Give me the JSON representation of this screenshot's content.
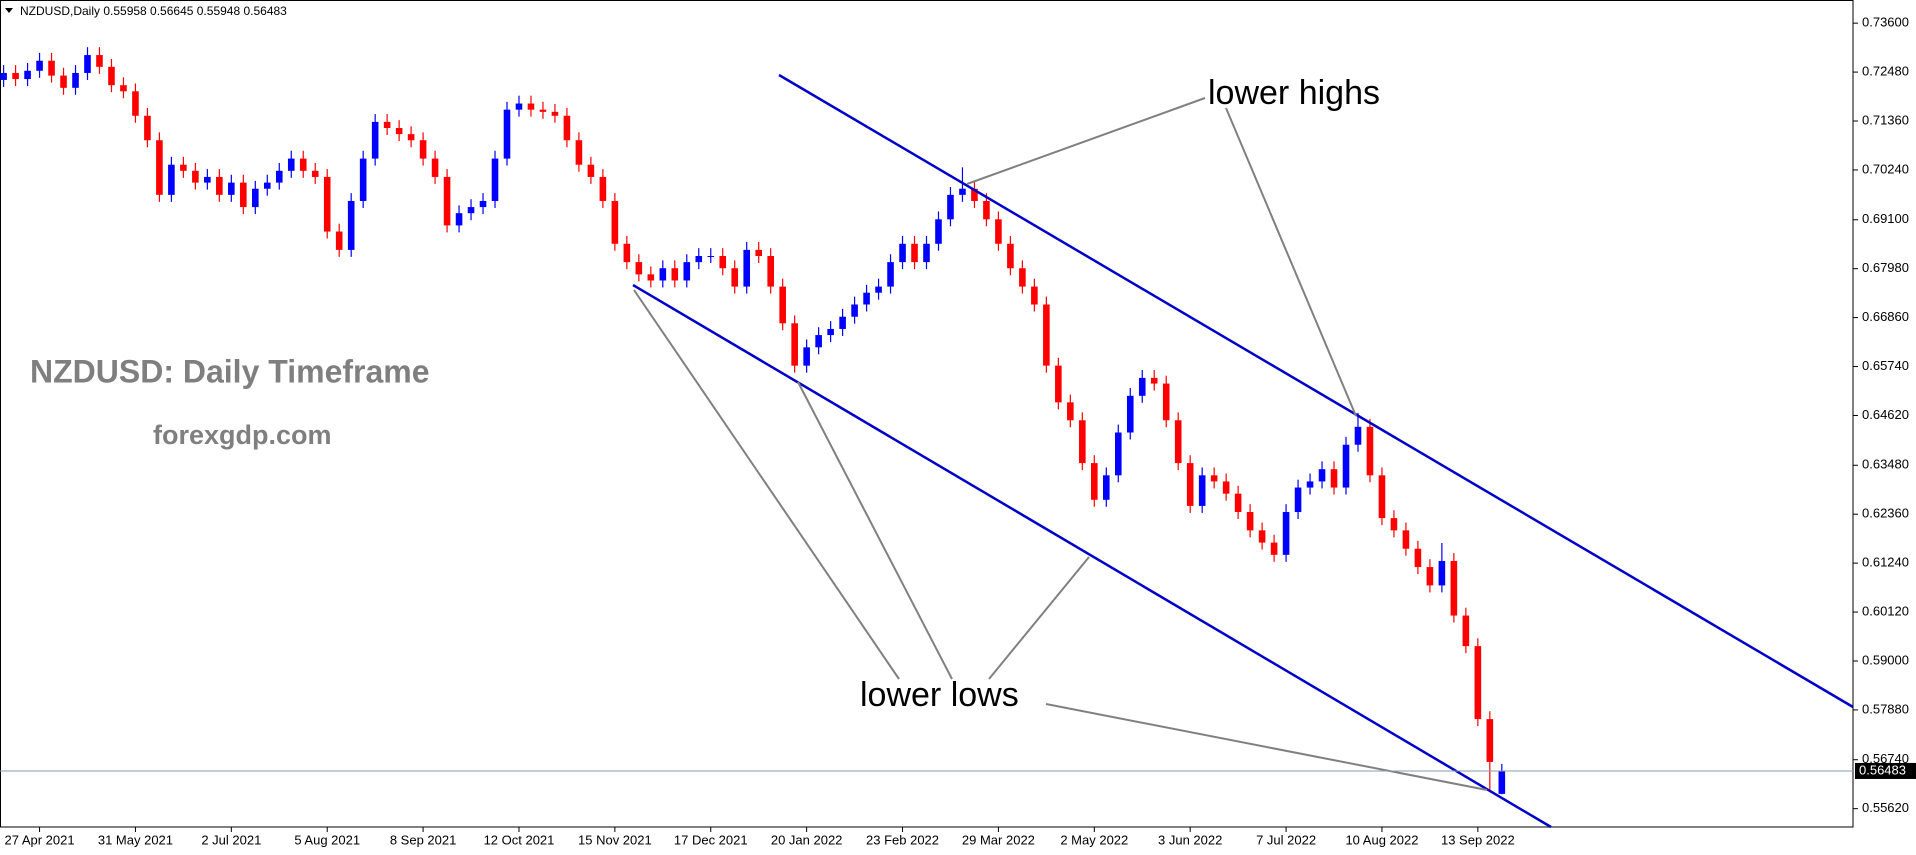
{
  "chart_data": {
    "type": "candlestick",
    "header": "NZDUSD,Daily  0.55958 0.56645 0.55948 0.56483",
    "annotations": [
      "NZDUSD: Daily Timeframe",
      "forexgdp.com",
      "lower highs",
      "lower lows"
    ],
    "up_color": "#0000ff",
    "down_color": "#ff0000",
    "channel_color": "#0000c8",
    "current_price": 0.56483,
    "xlim": [
      -0.3,
      154.3
    ],
    "xticks": [
      {
        "value": 3,
        "label": "27 Apr 2021"
      },
      {
        "value": 11,
        "label": "31 May 2021"
      },
      {
        "value": 19,
        "label": "2 Jul 2021"
      },
      {
        "value": 27,
        "label": "5 Aug 2021"
      },
      {
        "value": 35,
        "label": "8 Sep 2021"
      },
      {
        "value": 43,
        "label": "12 Oct 2021"
      },
      {
        "value": 51,
        "label": "15 Nov 2021"
      },
      {
        "value": 59,
        "label": "17 Dec 2021"
      },
      {
        "value": 67,
        "label": "20 Jan 2022"
      },
      {
        "value": 75,
        "label": "23 Feb 2022"
      },
      {
        "value": 83,
        "label": "29 Mar 2022"
      },
      {
        "value": 91,
        "label": "2 May 2022"
      },
      {
        "value": 99,
        "label": "3 Jun 2022"
      },
      {
        "value": 107,
        "label": "7 Jul 2022"
      },
      {
        "value": 115,
        "label": "10 Aug 2022"
      },
      {
        "value": 123,
        "label": "13 Sep 2022"
      }
    ],
    "ylim": [
      0.552,
      0.7413
    ],
    "yticks": [
      {
        "value": 0.736,
        "label": "0.73600"
      },
      {
        "value": 0.7248,
        "label": "0.72480"
      },
      {
        "value": 0.7136,
        "label": "0.71360"
      },
      {
        "value": 0.7024,
        "label": "0.70240"
      },
      {
        "value": 0.691,
        "label": "0.69100"
      },
      {
        "value": 0.6798,
        "label": "0.67980"
      },
      {
        "value": 0.6686,
        "label": "0.66860"
      },
      {
        "value": 0.6574,
        "label": "0.65740"
      },
      {
        "value": 0.6462,
        "label": "0.64620"
      },
      {
        "value": 0.6348,
        "label": "0.63480"
      },
      {
        "value": 0.6236,
        "label": "0.62360"
      },
      {
        "value": 0.6124,
        "label": "0.61240"
      },
      {
        "value": 0.6012,
        "label": "0.60120"
      },
      {
        "value": 0.59,
        "label": "0.59000"
      },
      {
        "value": 0.5788,
        "label": "0.57880"
      },
      {
        "value": 0.5674,
        "label": "0.56740"
      },
      {
        "value": 0.5562,
        "label": "0.55620"
      }
    ],
    "open": [
      0.723,
      0.7246,
      0.7232,
      0.7251,
      0.7274,
      0.724,
      0.7212,
      0.7246,
      0.7287,
      0.726,
      0.7218,
      0.7204,
      0.7148,
      0.7092,
      0.6967,
      0.7036,
      0.7022,
      0.6995,
      0.7008,
      0.6967,
      0.6995,
      0.6939,
      0.6981,
      0.6995,
      0.7022,
      0.705,
      0.7022,
      0.7008,
      0.6883,
      0.6841,
      0.6953,
      0.705,
      0.7134,
      0.712,
      0.7106,
      0.7092,
      0.705,
      0.7008,
      0.6897,
      0.6925,
      0.6939,
      0.6953,
      0.705,
      0.7162,
      0.7176,
      0.7162,
      0.7157,
      0.7148,
      0.7092,
      0.7036,
      0.7008,
      0.6953,
      0.6855,
      0.6813,
      0.6785,
      0.6771,
      0.6799,
      0.6771,
      0.6813,
      0.6827,
      0.6827,
      0.6799,
      0.6757,
      0.6841,
      0.6827,
      0.6757,
      0.6673,
      0.6576,
      0.6618,
      0.6646,
      0.666,
      0.6688,
      0.6716,
      0.6743,
      0.6757,
      0.6813,
      0.6855,
      0.6813,
      0.6855,
      0.6911,
      0.6967,
      0.6981,
      0.6953,
      0.6911,
      0.6855,
      0.6799,
      0.6757,
      0.6716,
      0.6576,
      0.6492,
      0.6451,
      0.6353,
      0.6269,
      0.6325,
      0.6423,
      0.6507,
      0.6548,
      0.6535,
      0.6451,
      0.6353,
      0.6255,
      0.6325,
      0.6311,
      0.6283,
      0.6241,
      0.6199,
      0.6171,
      0.6143,
      0.6241,
      0.6297,
      0.6311,
      0.6339,
      0.6297,
      0.6395,
      0.6436,
      0.6325,
      0.6227,
      0.6199,
      0.6157,
      0.6115,
      0.6073,
      0.6129,
      0.6004,
      0.5934,
      0.5767,
      0.55958
    ],
    "high": [
      0.7264,
      0.7264,
      0.7269,
      0.7292,
      0.7292,
      0.7258,
      0.7264,
      0.7305,
      0.7305,
      0.7278,
      0.7236,
      0.7222,
      0.7166,
      0.711,
      0.7054,
      0.7054,
      0.704,
      0.7026,
      0.7026,
      0.7013,
      0.7013,
      0.6999,
      0.7013,
      0.704,
      0.7068,
      0.7068,
      0.704,
      0.7026,
      0.6901,
      0.6971,
      0.7068,
      0.7152,
      0.7152,
      0.7138,
      0.7124,
      0.711,
      0.7068,
      0.7026,
      0.6943,
      0.6957,
      0.6971,
      0.7068,
      0.718,
      0.7194,
      0.7194,
      0.718,
      0.7175,
      0.7166,
      0.711,
      0.7054,
      0.7026,
      0.6971,
      0.6873,
      0.6831,
      0.6803,
      0.6817,
      0.6817,
      0.6831,
      0.6845,
      0.6845,
      0.6845,
      0.6817,
      0.6859,
      0.6859,
      0.6845,
      0.6775,
      0.6691,
      0.6636,
      0.6664,
      0.6678,
      0.6706,
      0.6734,
      0.6761,
      0.6775,
      0.6831,
      0.6873,
      0.6873,
      0.6873,
      0.6929,
      0.6985,
      0.703,
      0.6999,
      0.6971,
      0.6929,
      0.6873,
      0.6817,
      0.6775,
      0.6734,
      0.6594,
      0.651,
      0.6469,
      0.6371,
      0.6343,
      0.6441,
      0.6525,
      0.6566,
      0.6566,
      0.6553,
      0.6469,
      0.6371,
      0.6343,
      0.6343,
      0.6329,
      0.6301,
      0.6259,
      0.6217,
      0.6189,
      0.6259,
      0.6315,
      0.6329,
      0.6357,
      0.6357,
      0.6413,
      0.6468,
      0.6454,
      0.6343,
      0.6245,
      0.6217,
      0.6175,
      0.6133,
      0.617,
      0.6147,
      0.6022,
      0.5952,
      0.5785,
      0.56645
    ],
    "low": [
      0.7214,
      0.7216,
      0.7216,
      0.7235,
      0.7224,
      0.7196,
      0.7196,
      0.723,
      0.7244,
      0.7202,
      0.7188,
      0.7132,
      0.7076,
      0.6951,
      0.6951,
      0.7006,
      0.6979,
      0.6979,
      0.6951,
      0.6951,
      0.6923,
      0.6923,
      0.6965,
      0.6979,
      0.7006,
      0.7006,
      0.6992,
      0.6867,
      0.6825,
      0.6825,
      0.6937,
      0.7034,
      0.7104,
      0.709,
      0.7076,
      0.7034,
      0.6992,
      0.6881,
      0.6881,
      0.6909,
      0.6923,
      0.6937,
      0.7034,
      0.7146,
      0.7146,
      0.7141,
      0.7132,
      0.7076,
      0.702,
      0.6992,
      0.6937,
      0.6839,
      0.6797,
      0.6769,
      0.6755,
      0.6755,
      0.6755,
      0.6755,
      0.6797,
      0.6811,
      0.6783,
      0.6741,
      0.6741,
      0.6811,
      0.6741,
      0.6657,
      0.656,
      0.656,
      0.6602,
      0.663,
      0.6644,
      0.6672,
      0.67,
      0.6727,
      0.6741,
      0.6797,
      0.6797,
      0.6797,
      0.6839,
      0.6895,
      0.6951,
      0.6937,
      0.6895,
      0.6839,
      0.6783,
      0.6741,
      0.67,
      0.656,
      0.6476,
      0.6435,
      0.6337,
      0.6253,
      0.6253,
      0.6309,
      0.6407,
      0.6491,
      0.6519,
      0.6435,
      0.6337,
      0.6239,
      0.6239,
      0.6295,
      0.6267,
      0.6225,
      0.6183,
      0.6155,
      0.6127,
      0.6127,
      0.6225,
      0.6281,
      0.6295,
      0.6281,
      0.6281,
      0.6379,
      0.6309,
      0.6211,
      0.6183,
      0.6141,
      0.6099,
      0.6057,
      0.6057,
      0.5988,
      0.5918,
      0.5751,
      0.56,
      0.55948
    ],
    "close": [
      0.7246,
      0.7232,
      0.7251,
      0.7274,
      0.724,
      0.7212,
      0.7246,
      0.7287,
      0.726,
      0.7218,
      0.7204,
      0.7148,
      0.7092,
      0.6967,
      0.7036,
      0.7022,
      0.6995,
      0.7008,
      0.6967,
      0.6995,
      0.6939,
      0.6981,
      0.6995,
      0.7022,
      0.705,
      0.7022,
      0.7008,
      0.6883,
      0.6841,
      0.6953,
      0.705,
      0.7134,
      0.712,
      0.7106,
      0.7092,
      0.705,
      0.7008,
      0.6897,
      0.6925,
      0.6939,
      0.6953,
      0.705,
      0.7162,
      0.7176,
      0.7162,
      0.7157,
      0.7148,
      0.7092,
      0.7036,
      0.7008,
      0.6953,
      0.6855,
      0.6813,
      0.6785,
      0.6771,
      0.6799,
      0.6771,
      0.6813,
      0.6827,
      0.6827,
      0.6799,
      0.6757,
      0.6841,
      0.6827,
      0.6757,
      0.6673,
      0.6576,
      0.6618,
      0.6646,
      0.666,
      0.6688,
      0.6716,
      0.6743,
      0.6757,
      0.6813,
      0.6855,
      0.6813,
      0.6855,
      0.6911,
      0.6967,
      0.6981,
      0.6953,
      0.6911,
      0.6855,
      0.6799,
      0.6757,
      0.6716,
      0.6576,
      0.6492,
      0.6451,
      0.6353,
      0.6269,
      0.6325,
      0.6423,
      0.6507,
      0.6548,
      0.6535,
      0.6451,
      0.6353,
      0.6255,
      0.6325,
      0.6311,
      0.6283,
      0.6241,
      0.6199,
      0.6171,
      0.6143,
      0.6241,
      0.6297,
      0.6311,
      0.6339,
      0.6297,
      0.6395,
      0.6436,
      0.6325,
      0.6227,
      0.6199,
      0.6157,
      0.6115,
      0.6073,
      0.6129,
      0.6004,
      0.5934,
      0.5767,
      0.5669,
      0.56483
    ]
  }
}
